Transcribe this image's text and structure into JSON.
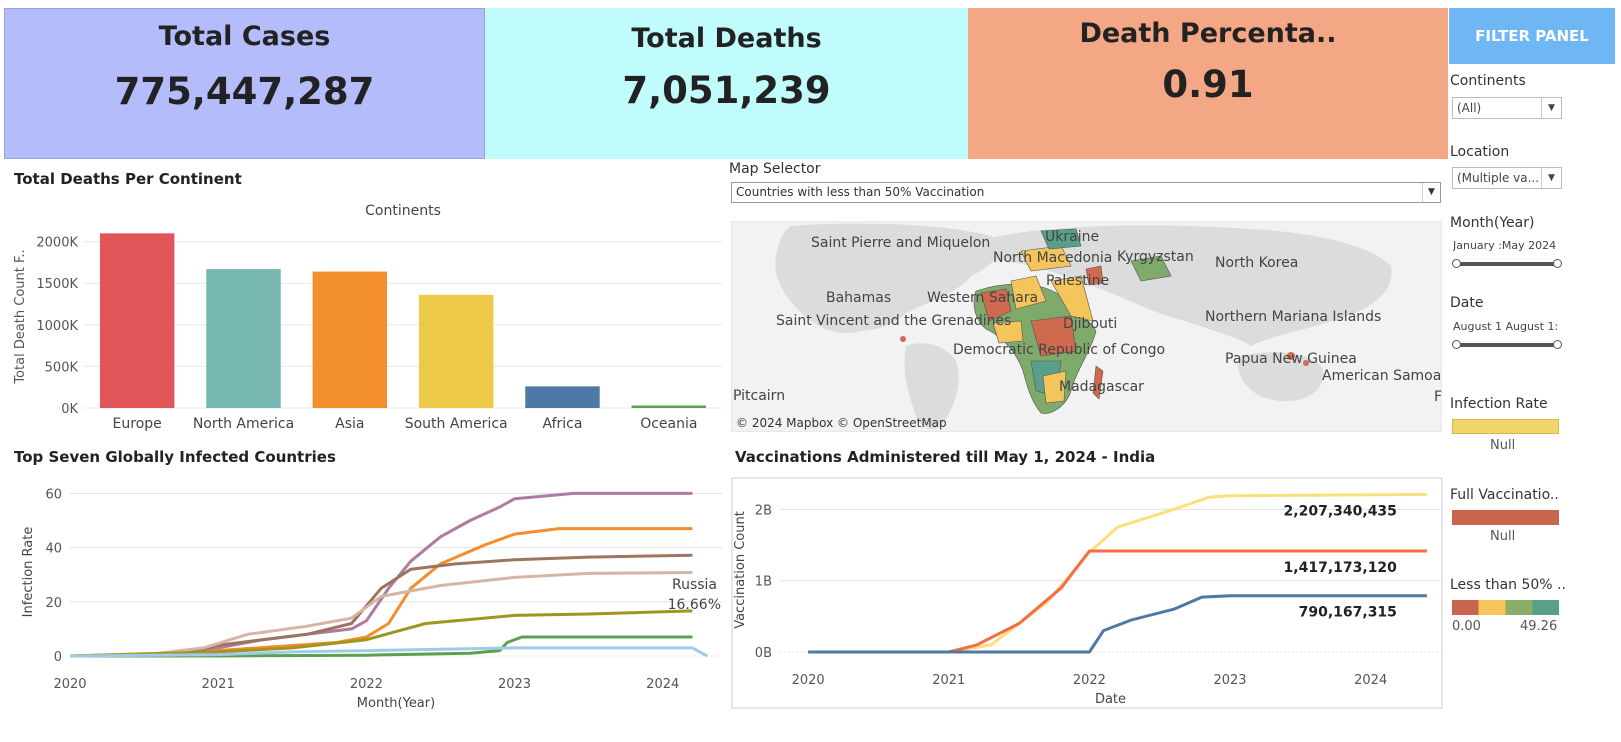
{
  "kpis": {
    "cases": {
      "title": "Total Cases",
      "value": "775,447,287"
    },
    "deaths": {
      "title": "Total Deaths",
      "value": "7,051,239"
    },
    "pct": {
      "title": "Death Percenta..",
      "value": "0.91"
    }
  },
  "colors": {
    "cases_bg": "#b4bcfc",
    "deaths_bg": "#c0fcfc",
    "pct_bg": "#f4a784",
    "filter_head": "#6eb6f4"
  },
  "bar_section": {
    "title": "Total Deaths Per Continent"
  },
  "line_section": {
    "title": "Top Seven Globally Infected Countries"
  },
  "vacc_section": {
    "title": "Vaccinations Administered till May 1, 2024 - India"
  },
  "map": {
    "selector_label": "Map Selector",
    "selector_value": "Countries with less than 50% Vaccination",
    "attribution": "© 2024 Mapbox © OpenStreetMap",
    "labels": [
      "Saint Pierre and Miquelon",
      "Ukraine",
      "North Macedonia",
      "Kyrgyzstan",
      "North Korea",
      "Palestine",
      "Bahamas",
      "Western Sahara",
      "Saint Vincent and the Grenadines",
      "Djibouti",
      "Northern Mariana Islands",
      "Democratic Republic of Congo",
      "Papua New Guinea",
      "American Samoa",
      "Pitcairn",
      "Madagascar",
      "F"
    ]
  },
  "filter_panel": {
    "title": "FILTER PANEL",
    "continents_label": "Continents",
    "continents_value": "(All)",
    "location_label": "Location",
    "location_value": "(Multiple va...",
    "month_label": "Month(Year)",
    "month_range": "January :May 2024",
    "date_label": "Date",
    "date_range": "August 1 August 1:",
    "legend1_label": "Infection Rate",
    "legend1_null": "Null",
    "legend2_label": "Full Vaccinatio..",
    "legend2_null": "Null",
    "legend3_label": "Less than 50% ..",
    "legend3_min": "0.00",
    "legend3_max": "49.26"
  },
  "chart_data": [
    {
      "type": "bar",
      "title": "Continents",
      "ylabel": "Total Death Count F..",
      "categories": [
        "Europe",
        "North America",
        "Asia",
        "South America",
        "Africa",
        "Oceania"
      ],
      "values": [
        2100,
        1670,
        1640,
        1360,
        260,
        30
      ],
      "ylim": [
        0,
        2200
      ],
      "yticks": [
        0,
        500,
        1000,
        1500,
        2000
      ],
      "ytick_labels": [
        "0K",
        "500K",
        "1000K",
        "1500K",
        "2000K"
      ],
      "colors": [
        "#e15759",
        "#76b7b2",
        "#f28e2b",
        "#edc948",
        "#4e79a7",
        "#59a14f"
      ]
    },
    {
      "type": "line",
      "xlabel": "Month(Year)",
      "ylabel": "Infection Rate",
      "xlim": [
        2020,
        2024.4
      ],
      "ylim": [
        0,
        62
      ],
      "yticks": [
        0,
        20,
        40,
        60
      ],
      "xticks": [
        2020,
        2021,
        2022,
        2023,
        2024
      ],
      "annotation": {
        "label": "Russia",
        "value": "16.66%"
      },
      "series": [
        {
          "color": "#b07aa1",
          "x": [
            2020,
            2020.7,
            2021,
            2021.3,
            2021.6,
            2021.9,
            2022,
            2022.15,
            2022.3,
            2022.5,
            2022.7,
            2022.9,
            2023,
            2023.4,
            2024.2
          ],
          "y": [
            0,
            0.5,
            3,
            6,
            8,
            10,
            13,
            25,
            35,
            44,
            50,
            55,
            58,
            60,
            60
          ]
        },
        {
          "color": "#f28e2b",
          "x": [
            2020,
            2020.7,
            2021,
            2021.4,
            2021.8,
            2022,
            2022.15,
            2022.3,
            2022.5,
            2022.8,
            2023,
            2023.3,
            2024.2
          ],
          "y": [
            0,
            0.5,
            2,
            3.5,
            5,
            7,
            12,
            25,
            34,
            41,
            45,
            47,
            47
          ]
        },
        {
          "color": "#9c755f",
          "x": [
            2020,
            2020.8,
            2021,
            2021.3,
            2021.6,
            2021.9,
            2022.1,
            2022.3,
            2022.6,
            2023,
            2023.5,
            2024.2
          ],
          "y": [
            0,
            1,
            4,
            6,
            8,
            12,
            25,
            32,
            34,
            35.5,
            36.5,
            37.2
          ]
        },
        {
          "color": "#d7b5a6",
          "x": [
            2020,
            2020.6,
            2020.9,
            2021.2,
            2021.6,
            2021.9,
            2022.1,
            2022.5,
            2023,
            2023.5,
            2024.2
          ],
          "y": [
            0,
            1,
            3,
            8,
            11,
            14,
            22,
            26,
            29,
            30.5,
            30.8
          ]
        },
        {
          "color": "#a0961f",
          "x": [
            2020,
            2021,
            2021.5,
            2022,
            2022.2,
            2022.4,
            2022.8,
            2023,
            2023.5,
            2024.2
          ],
          "y": [
            0,
            1.5,
            3,
            6,
            9,
            12,
            14,
            15,
            15.5,
            16.66
          ]
        },
        {
          "color": "#59a14f",
          "x": [
            2020,
            2021,
            2022,
            2022.7,
            2022.9,
            2022.95,
            2023.05,
            2024.2
          ],
          "y": [
            0,
            0,
            0.3,
            1,
            2,
            5,
            7,
            7
          ]
        },
        {
          "color": "#a0cbe8",
          "x": [
            2020,
            2021,
            2021.5,
            2022,
            2022.5,
            2023,
            2024.2,
            2024.3
          ],
          "y": [
            0,
            0.5,
            1.5,
            2,
            2.5,
            3,
            3,
            0
          ]
        }
      ]
    },
    {
      "type": "line",
      "xlabel": "Date",
      "ylabel": "Vaccination Count",
      "xlim": [
        2019.8,
        2024.5
      ],
      "ylim": [
        0,
        2.3
      ],
      "yticks": [
        0,
        1,
        2
      ],
      "ytick_labels": [
        "0B",
        "1B",
        "2B"
      ],
      "xticks": [
        2020,
        2021,
        2022,
        2023,
        2024
      ],
      "series": [
        {
          "color": "#fbe07a",
          "x": [
            2020,
            2021,
            2021.3,
            2021.7,
            2022,
            2022.2,
            2022.6,
            2022.85,
            2023,
            2024.4
          ],
          "y": [
            0,
            0,
            0.1,
            0.7,
            1.4,
            1.75,
            2.0,
            2.17,
            2.19,
            2.21
          ],
          "label": "2,207,340,435"
        },
        {
          "color": "#f56d45",
          "x": [
            2020,
            2021,
            2021.2,
            2021.5,
            2021.8,
            2022,
            2024.4
          ],
          "y": [
            0,
            0,
            0.1,
            0.4,
            0.9,
            1.417,
            1.417
          ],
          "label": "1,417,173,120"
        },
        {
          "color": "#4e79a7",
          "x": [
            2020,
            2022,
            2022.1,
            2022.3,
            2022.6,
            2022.8,
            2023,
            2024.4
          ],
          "y": [
            0,
            0,
            0.3,
            0.45,
            0.6,
            0.77,
            0.79,
            0.79
          ],
          "label": "790,167,315"
        }
      ]
    }
  ]
}
